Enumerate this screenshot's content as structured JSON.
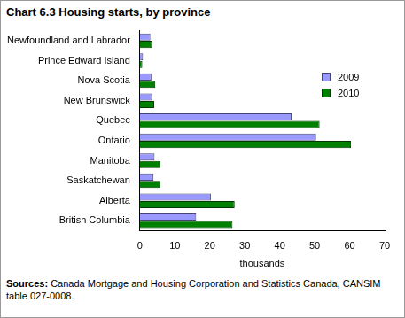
{
  "chart_data": {
    "type": "bar",
    "orientation": "horizontal",
    "title": "Chart 6.3 Housing starts, by province",
    "x_label": "thousands",
    "note": "Sources: Canada Mortgage and Housing Corporation and Statistics Canada, CANSIM table 027-0008.",
    "categories": [
      "Newfoundland and Labrador",
      "Prince Edward Island",
      "Nova Scotia",
      "New Brunswick",
      "Quebec",
      "Ontario",
      "Manitoba",
      "Saskatchewan",
      "Alberta",
      "British Columbia"
    ],
    "series": [
      {
        "name": "2009",
        "color": "#9999ff",
        "values": [
          3.0,
          0.9,
          3.3,
          3.5,
          43.4,
          50.4,
          4.2,
          3.9,
          20.3,
          16.1
        ]
      },
      {
        "name": "2010",
        "color": "#008000",
        "values": [
          3.5,
          0.7,
          4.4,
          4.1,
          51.4,
          60.4,
          5.9,
          5.9,
          27.1,
          26.5
        ]
      }
    ],
    "xlim": [
      0,
      70
    ],
    "xticks": [
      0,
      10,
      20,
      30,
      40,
      50,
      60,
      70
    ],
    "grid": false,
    "legend": "upper right"
  }
}
